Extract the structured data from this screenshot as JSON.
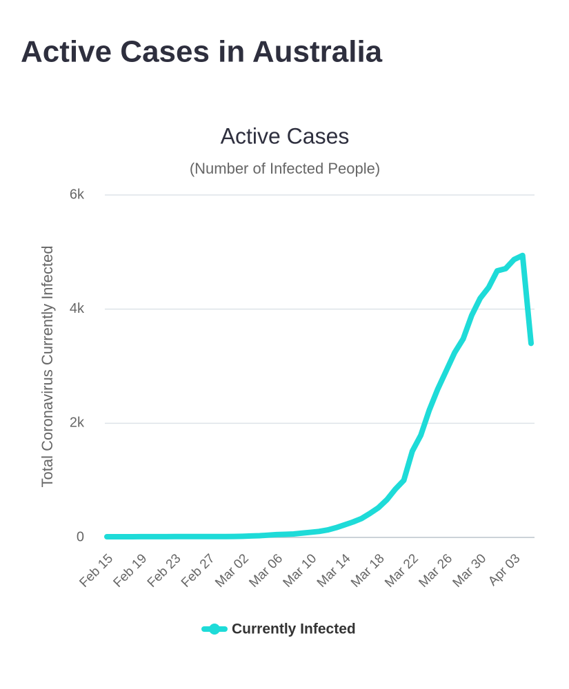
{
  "header": {
    "title": "Active Cases in Australia"
  },
  "chart_data": {
    "type": "line",
    "title": "Active Cases",
    "subtitle": "(Number of Infected People)",
    "y_label": "Total Coronavirus Currently Infected",
    "categories": [
      "Feb 15",
      null,
      null,
      null,
      "Feb 19",
      null,
      null,
      null,
      "Feb 23",
      null,
      null,
      null,
      "Feb 27",
      null,
      null,
      null,
      "Mar 02",
      null,
      null,
      null,
      "Mar 06",
      null,
      null,
      null,
      "Mar 10",
      null,
      null,
      null,
      "Mar 14",
      null,
      null,
      null,
      "Mar 18",
      null,
      null,
      null,
      "Mar 22",
      null,
      null,
      null,
      "Mar 26",
      null,
      null,
      null,
      "Mar 30",
      null,
      null,
      null,
      "Apr 03",
      null,
      null
    ],
    "series": [
      {
        "name": "Currently Infected",
        "color": "#1edbd8",
        "values": [
          12,
          12,
          12,
          12,
          13,
          13,
          13,
          14,
          15,
          15,
          15,
          15,
          15,
          15,
          15,
          16,
          20,
          25,
          30,
          40,
          50,
          55,
          60,
          75,
          90,
          105,
          130,
          170,
          220,
          270,
          330,
          420,
          520,
          660,
          845,
          1000,
          1510,
          1790,
          2230,
          2600,
          2920,
          3240,
          3480,
          3890,
          4190,
          4380,
          4670,
          4710,
          4870,
          4940,
          3400
        ]
      }
    ],
    "ylim": [
      0,
      6000
    ],
    "yticks": [
      0,
      {
        "value": 2000,
        "label": "2k"
      },
      {
        "value": 4000,
        "label": "4k"
      },
      {
        "value": 6000,
        "label": "6k"
      }
    ],
    "grid": true,
    "legend": "bottom"
  }
}
